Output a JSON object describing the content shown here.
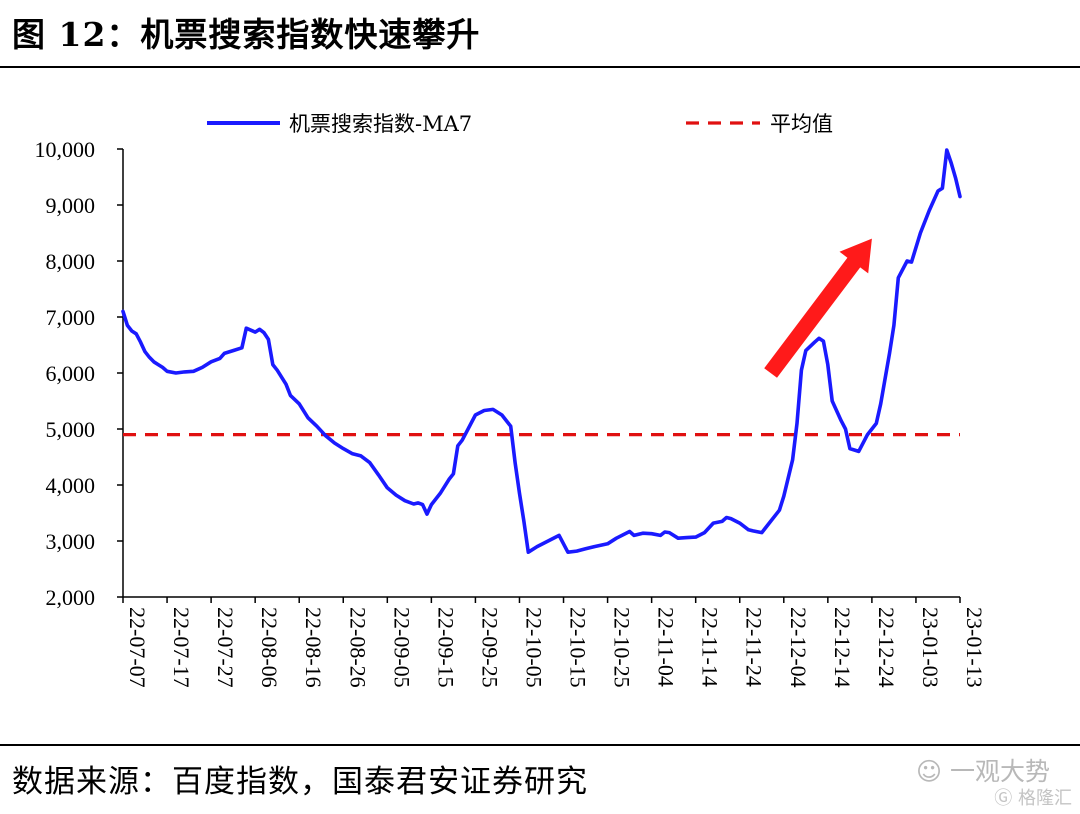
{
  "header": {
    "title": "图 12：机票搜索指数快速攀升"
  },
  "footer": {
    "source": "数据来源：百度指数，国泰君安证券研究"
  },
  "watermark": {
    "primary": "一观大势",
    "secondary": "格隆汇"
  },
  "colors": {
    "series": "#1a1aff",
    "average": "#e01010",
    "arrow": "#ff1a1a",
    "axis": "#000000"
  },
  "chart_data": {
    "type": "line",
    "title": "",
    "xlabel": "",
    "ylabel": "",
    "ylim": [
      2000,
      10000
    ],
    "yticks": [
      2000,
      3000,
      4000,
      5000,
      6000,
      7000,
      8000,
      9000,
      10000
    ],
    "ytick_labels": [
      "2,000",
      "3,000",
      "4,000",
      "5,000",
      "6,000",
      "7,000",
      "8,000",
      "9,000",
      "10,000"
    ],
    "xlim": [
      "22-07-07",
      "23-01-13"
    ],
    "xtick_labels": [
      "22-07-07",
      "22-07-17",
      "22-07-27",
      "22-08-06",
      "22-08-16",
      "22-08-26",
      "22-09-05",
      "22-09-15",
      "22-09-25",
      "22-10-05",
      "22-10-15",
      "22-10-25",
      "22-11-04",
      "22-11-14",
      "22-11-24",
      "22-12-04",
      "22-12-14",
      "22-12-24",
      "23-01-03",
      "23-01-13"
    ],
    "grid": false,
    "legend_position": "top",
    "series": [
      {
        "name": "机票搜索指数-MA7",
        "style": "solid",
        "points": [
          [
            "22-07-07",
            7100
          ],
          [
            "22-07-08",
            6850
          ],
          [
            "22-07-09",
            6750
          ],
          [
            "22-07-10",
            6700
          ],
          [
            "22-07-11",
            6550
          ],
          [
            "22-07-12",
            6380
          ],
          [
            "22-07-13",
            6280
          ],
          [
            "22-07-14",
            6200
          ],
          [
            "22-07-15",
            6150
          ],
          [
            "22-07-16",
            6100
          ],
          [
            "22-07-17",
            6030
          ],
          [
            "22-07-19",
            6000
          ],
          [
            "22-07-21",
            6020
          ],
          [
            "22-07-23",
            6030
          ],
          [
            "22-07-25",
            6100
          ],
          [
            "22-07-27",
            6200
          ],
          [
            "22-07-29",
            6260
          ],
          [
            "22-07-30",
            6350
          ],
          [
            "22-08-01",
            6400
          ],
          [
            "22-08-03",
            6450
          ],
          [
            "22-08-04",
            6800
          ],
          [
            "22-08-06",
            6730
          ],
          [
            "22-08-07",
            6780
          ],
          [
            "22-08-08",
            6720
          ],
          [
            "22-08-09",
            6600
          ],
          [
            "22-08-10",
            6150
          ],
          [
            "22-08-11",
            6050
          ],
          [
            "22-08-13",
            5800
          ],
          [
            "22-08-14",
            5600
          ],
          [
            "22-08-16",
            5450
          ],
          [
            "22-08-18",
            5200
          ],
          [
            "22-08-20",
            5050
          ],
          [
            "22-08-22",
            4880
          ],
          [
            "22-08-24",
            4750
          ],
          [
            "22-08-26",
            4650
          ],
          [
            "22-08-28",
            4560
          ],
          [
            "22-08-30",
            4520
          ],
          [
            "22-09-01",
            4400
          ],
          [
            "22-09-03",
            4180
          ],
          [
            "22-09-05",
            3950
          ],
          [
            "22-09-07",
            3820
          ],
          [
            "22-09-09",
            3720
          ],
          [
            "22-09-11",
            3660
          ],
          [
            "22-09-12",
            3680
          ],
          [
            "22-09-13",
            3650
          ],
          [
            "22-09-14",
            3480
          ],
          [
            "22-09-15",
            3650
          ],
          [
            "22-09-17",
            3850
          ],
          [
            "22-09-19",
            4100
          ],
          [
            "22-09-20",
            4200
          ],
          [
            "22-09-21",
            4700
          ],
          [
            "22-09-22",
            4800
          ],
          [
            "22-09-23",
            4950
          ],
          [
            "22-09-25",
            5250
          ],
          [
            "22-09-27",
            5330
          ],
          [
            "22-09-29",
            5350
          ],
          [
            "22-10-01",
            5250
          ],
          [
            "22-10-02",
            5150
          ],
          [
            "22-10-03",
            5050
          ],
          [
            "22-10-04",
            4400
          ],
          [
            "22-10-05",
            3850
          ],
          [
            "22-10-06",
            3350
          ],
          [
            "22-10-07",
            2800
          ],
          [
            "22-10-09",
            2900
          ],
          [
            "22-10-11",
            2980
          ],
          [
            "22-10-13",
            3060
          ],
          [
            "22-10-14",
            3100
          ],
          [
            "22-10-16",
            2800
          ],
          [
            "22-10-18",
            2820
          ],
          [
            "22-10-20",
            2860
          ],
          [
            "22-10-22",
            2900
          ],
          [
            "22-10-25",
            2950
          ],
          [
            "22-10-27",
            3050
          ],
          [
            "22-10-30",
            3170
          ],
          [
            "22-10-31",
            3100
          ],
          [
            "22-11-02",
            3140
          ],
          [
            "22-11-04",
            3130
          ],
          [
            "22-11-06",
            3100
          ],
          [
            "22-11-07",
            3160
          ],
          [
            "22-11-08",
            3150
          ],
          [
            "22-11-10",
            3050
          ],
          [
            "22-11-12",
            3060
          ],
          [
            "22-11-14",
            3070
          ],
          [
            "22-11-16",
            3150
          ],
          [
            "22-11-18",
            3320
          ],
          [
            "22-11-20",
            3350
          ],
          [
            "22-11-21",
            3420
          ],
          [
            "22-11-22",
            3400
          ],
          [
            "22-11-24",
            3320
          ],
          [
            "22-11-26",
            3200
          ],
          [
            "22-11-27",
            3180
          ],
          [
            "22-11-29",
            3150
          ],
          [
            "22-12-01",
            3350
          ],
          [
            "22-12-03",
            3550
          ],
          [
            "22-12-04",
            3800
          ],
          [
            "22-12-06",
            4450
          ],
          [
            "22-12-07",
            5100
          ],
          [
            "22-12-08",
            6050
          ],
          [
            "22-12-09",
            6400
          ],
          [
            "22-12-11",
            6550
          ],
          [
            "22-12-12",
            6620
          ],
          [
            "22-12-13",
            6570
          ],
          [
            "22-12-14",
            6150
          ],
          [
            "22-12-15",
            5500
          ],
          [
            "22-12-17",
            5150
          ],
          [
            "22-12-18",
            5000
          ],
          [
            "22-12-19",
            4650
          ],
          [
            "22-12-21",
            4600
          ],
          [
            "22-12-23",
            4900
          ],
          [
            "22-12-25",
            5100
          ],
          [
            "22-12-26",
            5450
          ],
          [
            "22-12-28",
            6350
          ],
          [
            "22-12-29",
            6850
          ],
          [
            "22-12-30",
            7700
          ],
          [
            "23-01-01",
            8000
          ],
          [
            "23-01-02",
            7980
          ],
          [
            "23-01-04",
            8500
          ],
          [
            "23-01-06",
            8900
          ],
          [
            "23-01-08",
            9250
          ],
          [
            "23-01-09",
            9300
          ],
          [
            "23-01-10",
            9980
          ],
          [
            "23-01-11",
            9750
          ],
          [
            "23-01-12",
            9480
          ],
          [
            "23-01-13",
            9150
          ]
        ]
      },
      {
        "name": "平均值",
        "style": "dashed",
        "points": [
          [
            "22-07-07",
            4900
          ],
          [
            "23-01-13",
            4900
          ]
        ]
      }
    ],
    "annotations": [
      {
        "type": "arrow",
        "from": [
          "22-12-01",
          6000
        ],
        "to": [
          "22-12-24",
          8400
        ]
      }
    ]
  }
}
